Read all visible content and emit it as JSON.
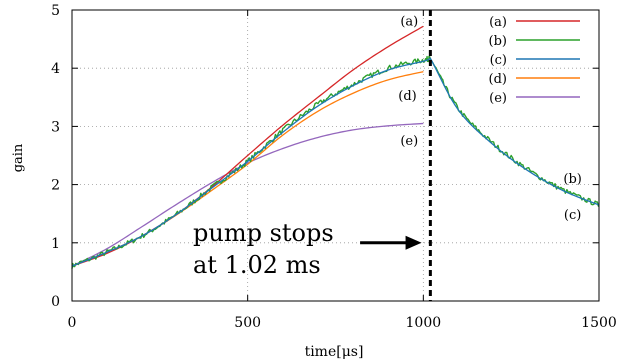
{
  "chart_data": {
    "type": "line",
    "xlabel": "time[μs]",
    "ylabel": "gain",
    "xlim": [
      0,
      1500
    ],
    "ylim": [
      0,
      5
    ],
    "xticks": [
      0,
      500,
      1000,
      1500
    ],
    "yticks": [
      0,
      1,
      2,
      3,
      4,
      5
    ],
    "grid": true,
    "legend_position": "top-right",
    "x_tick_labels": [
      "0",
      "500",
      "1000",
      "1500"
    ],
    "y_tick_labels": [
      "0",
      "1",
      "2",
      "3",
      "4",
      "5"
    ],
    "series": [
      {
        "name": "(a)",
        "color": "#d62728",
        "x": [
          0,
          100,
          200,
          300,
          400,
          500,
          600,
          700,
          800,
          900,
          1000
        ],
        "y": [
          0.6,
          0.82,
          1.12,
          1.5,
          1.97,
          2.5,
          3.02,
          3.5,
          3.97,
          4.37,
          4.72
        ]
      },
      {
        "name": "(b)",
        "color": "#2ca02c",
        "noisy": true,
        "x": [
          0,
          100,
          200,
          300,
          400,
          500,
          600,
          700,
          800,
          900,
          1000,
          1020,
          1100,
          1200,
          1300,
          1400,
          1500
        ],
        "y": [
          0.6,
          0.84,
          1.12,
          1.5,
          1.96,
          2.4,
          2.93,
          3.38,
          3.72,
          4.0,
          4.14,
          4.17,
          3.3,
          2.7,
          2.25,
          1.9,
          1.65
        ]
      },
      {
        "name": "(c)",
        "color": "#1f77b4",
        "x": [
          0,
          100,
          200,
          300,
          400,
          500,
          600,
          700,
          800,
          900,
          1000,
          1020,
          1100,
          1200,
          1300,
          1400,
          1500
        ],
        "y": [
          0.6,
          0.84,
          1.12,
          1.5,
          1.95,
          2.4,
          2.9,
          3.35,
          3.7,
          3.97,
          4.12,
          4.17,
          3.28,
          2.68,
          2.23,
          1.89,
          1.65
        ]
      },
      {
        "name": "(d)",
        "color": "#ff7f0e",
        "x": [
          0,
          100,
          200,
          300,
          400,
          500,
          600,
          700,
          800,
          900,
          1000
        ],
        "y": [
          0.6,
          0.84,
          1.12,
          1.49,
          1.91,
          2.35,
          2.85,
          3.26,
          3.57,
          3.8,
          3.94
        ]
      },
      {
        "name": "(e)",
        "color": "#9467bd",
        "x": [
          0,
          100,
          200,
          300,
          400,
          500,
          600,
          700,
          800,
          900,
          1000
        ],
        "y": [
          0.6,
          0.9,
          1.28,
          1.67,
          2.04,
          2.37,
          2.62,
          2.81,
          2.94,
          3.01,
          3.05
        ]
      }
    ],
    "vline": {
      "x": 1020,
      "style": "dashed"
    },
    "curve_labels": [
      {
        "text": "(a)",
        "x": 960,
        "y": 4.8
      },
      {
        "text": "(d)",
        "x": 955,
        "y": 3.52
      },
      {
        "text": "(e)",
        "x": 960,
        "y": 2.75
      },
      {
        "text": "(b)",
        "x": 1425,
        "y": 2.1
      },
      {
        "text": "(c)",
        "x": 1425,
        "y": 1.48
      }
    ],
    "annotation": {
      "lines": [
        "pump stops",
        "at 1.02 ms"
      ],
      "arrow_from": [
        820,
        1.0
      ],
      "arrow_to": [
        995,
        1.0
      ]
    }
  }
}
